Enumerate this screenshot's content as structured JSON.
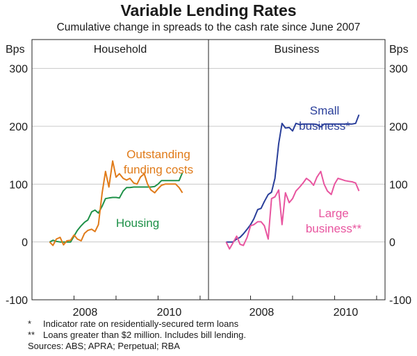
{
  "chart_data": {
    "type": "line",
    "title": "Variable Lending Rates",
    "subtitle": "Cumulative change in spreads to the cash rate since June 2007",
    "unit_left": "Bps",
    "unit_right": "Bps",
    "ylim": [
      -100,
      350
    ],
    "yticks": [
      -100,
      0,
      100,
      200,
      300
    ],
    "xlim": [
      2007.0,
      2011.2
    ],
    "xticks": [
      {
        "value": 2008.0,
        "label": "2008"
      },
      {
        "value": 2010.0,
        "label": "2010"
      }
    ],
    "panels": [
      {
        "name": "Household",
        "series": [
          {
            "name": "Housing",
            "label_lines": [
              "Housing"
            ],
            "color": "#1e9148",
            "x": [
              2007.42,
              2007.5,
              2007.58,
              2007.67,
              2007.75,
              2007.83,
              2007.92,
              2008.0,
              2008.08,
              2008.17,
              2008.25,
              2008.33,
              2008.42,
              2008.5,
              2008.58,
              2008.67,
              2008.75,
              2008.83,
              2008.92,
              2009.0,
              2009.08,
              2009.17,
              2009.25,
              2009.33,
              2009.42,
              2009.5,
              2009.58,
              2009.67,
              2009.75,
              2009.83,
              2009.92,
              2010.0,
              2010.08,
              2010.17,
              2010.25,
              2010.33,
              2010.42,
              2010.5,
              2010.58
            ],
            "values": [
              0,
              3,
              1,
              0,
              0,
              0,
              0,
              10,
              20,
              28,
              34,
              38,
              52,
              55,
              50,
              62,
              75,
              76,
              77,
              77,
              76,
              88,
              94,
              94,
              95,
              95,
              95,
              95,
              95,
              95,
              96,
              100,
              106,
              106,
              106,
              106,
              106,
              106,
              120
            ]
          },
          {
            "name": "Outstanding funding costs",
            "label_lines": [
              "Outstanding",
              "funding costs"
            ],
            "color": "#e07b1a",
            "x": [
              2007.42,
              2007.5,
              2007.58,
              2007.67,
              2007.75,
              2007.83,
              2007.92,
              2008.0,
              2008.08,
              2008.17,
              2008.25,
              2008.33,
              2008.42,
              2008.5,
              2008.58,
              2008.67,
              2008.75,
              2008.83,
              2008.92,
              2009.0,
              2009.08,
              2009.17,
              2009.25,
              2009.33,
              2009.42,
              2009.5,
              2009.58,
              2009.67,
              2009.75,
              2009.83,
              2009.92,
              2010.0,
              2010.08,
              2010.17,
              2010.25,
              2010.33,
              2010.42,
              2010.5,
              2010.58
            ],
            "values": [
              0,
              -6,
              5,
              8,
              -5,
              2,
              3,
              12,
              5,
              2,
              15,
              20,
              22,
              18,
              30,
              85,
              122,
              95,
              140,
              112,
              118,
              110,
              107,
              110,
              102,
              100,
              112,
              118,
              100,
              90,
              85,
              92,
              98,
              100,
              100,
              100,
              100,
              94,
              85
            ]
          }
        ]
      },
      {
        "name": "Business",
        "series": [
          {
            "name": "Small business",
            "label_lines": [
              "Small",
              "business*"
            ],
            "color": "#2a3f9a",
            "x": [
              2007.42,
              2007.5,
              2007.58,
              2007.67,
              2007.75,
              2007.83,
              2007.92,
              2008.0,
              2008.08,
              2008.17,
              2008.25,
              2008.33,
              2008.42,
              2008.5,
              2008.58,
              2008.67,
              2008.75,
              2008.83,
              2008.92,
              2009.0,
              2009.08,
              2009.17,
              2009.25,
              2009.33,
              2009.42,
              2009.5,
              2009.58,
              2009.67,
              2009.75,
              2009.83,
              2009.92,
              2010.0,
              2010.08,
              2010.17,
              2010.25,
              2010.33,
              2010.42,
              2010.5,
              2010.58
            ],
            "values": [
              0,
              0,
              0,
              5,
              8,
              14,
              22,
              30,
              40,
              56,
              58,
              70,
              82,
              86,
              110,
              170,
              205,
              197,
              198,
              192,
              205,
              203,
              204,
              204,
              204,
              204,
              203,
              199,
              204,
              204,
              204,
              204,
              204,
              204,
              204,
              204,
              204,
              205,
              220
            ]
          },
          {
            "name": "Large business",
            "label_lines": [
              "Large",
              "business**"
            ],
            "color": "#e8559f",
            "x": [
              2007.42,
              2007.5,
              2007.58,
              2007.67,
              2007.75,
              2007.83,
              2007.92,
              2008.0,
              2008.08,
              2008.17,
              2008.25,
              2008.33,
              2008.42,
              2008.5,
              2008.58,
              2008.67,
              2008.75,
              2008.83,
              2008.92,
              2009.0,
              2009.08,
              2009.17,
              2009.25,
              2009.33,
              2009.42,
              2009.5,
              2009.58,
              2009.67,
              2009.75,
              2009.83,
              2009.92,
              2010.0,
              2010.08,
              2010.17,
              2010.25,
              2010.33,
              2010.42,
              2010.5,
              2010.58
            ],
            "values": [
              0,
              -12,
              -2,
              10,
              -4,
              -6,
              8,
              28,
              30,
              35,
              35,
              28,
              5,
              75,
              78,
              90,
              30,
              85,
              68,
              75,
              88,
              95,
              102,
              110,
              105,
              98,
              112,
              122,
              100,
              88,
              82,
              100,
              110,
              108,
              106,
              105,
              104,
              102,
              88
            ]
          }
        ]
      }
    ]
  },
  "notes": [
    {
      "mark": "*",
      "text": "Indicator rate on residentially-secured term loans"
    },
    {
      "mark": "**",
      "text": "Loans greater than $2 million. Includes bill lending."
    }
  ],
  "sources": "Sources: ABS; APRA; Perpetual; RBA"
}
